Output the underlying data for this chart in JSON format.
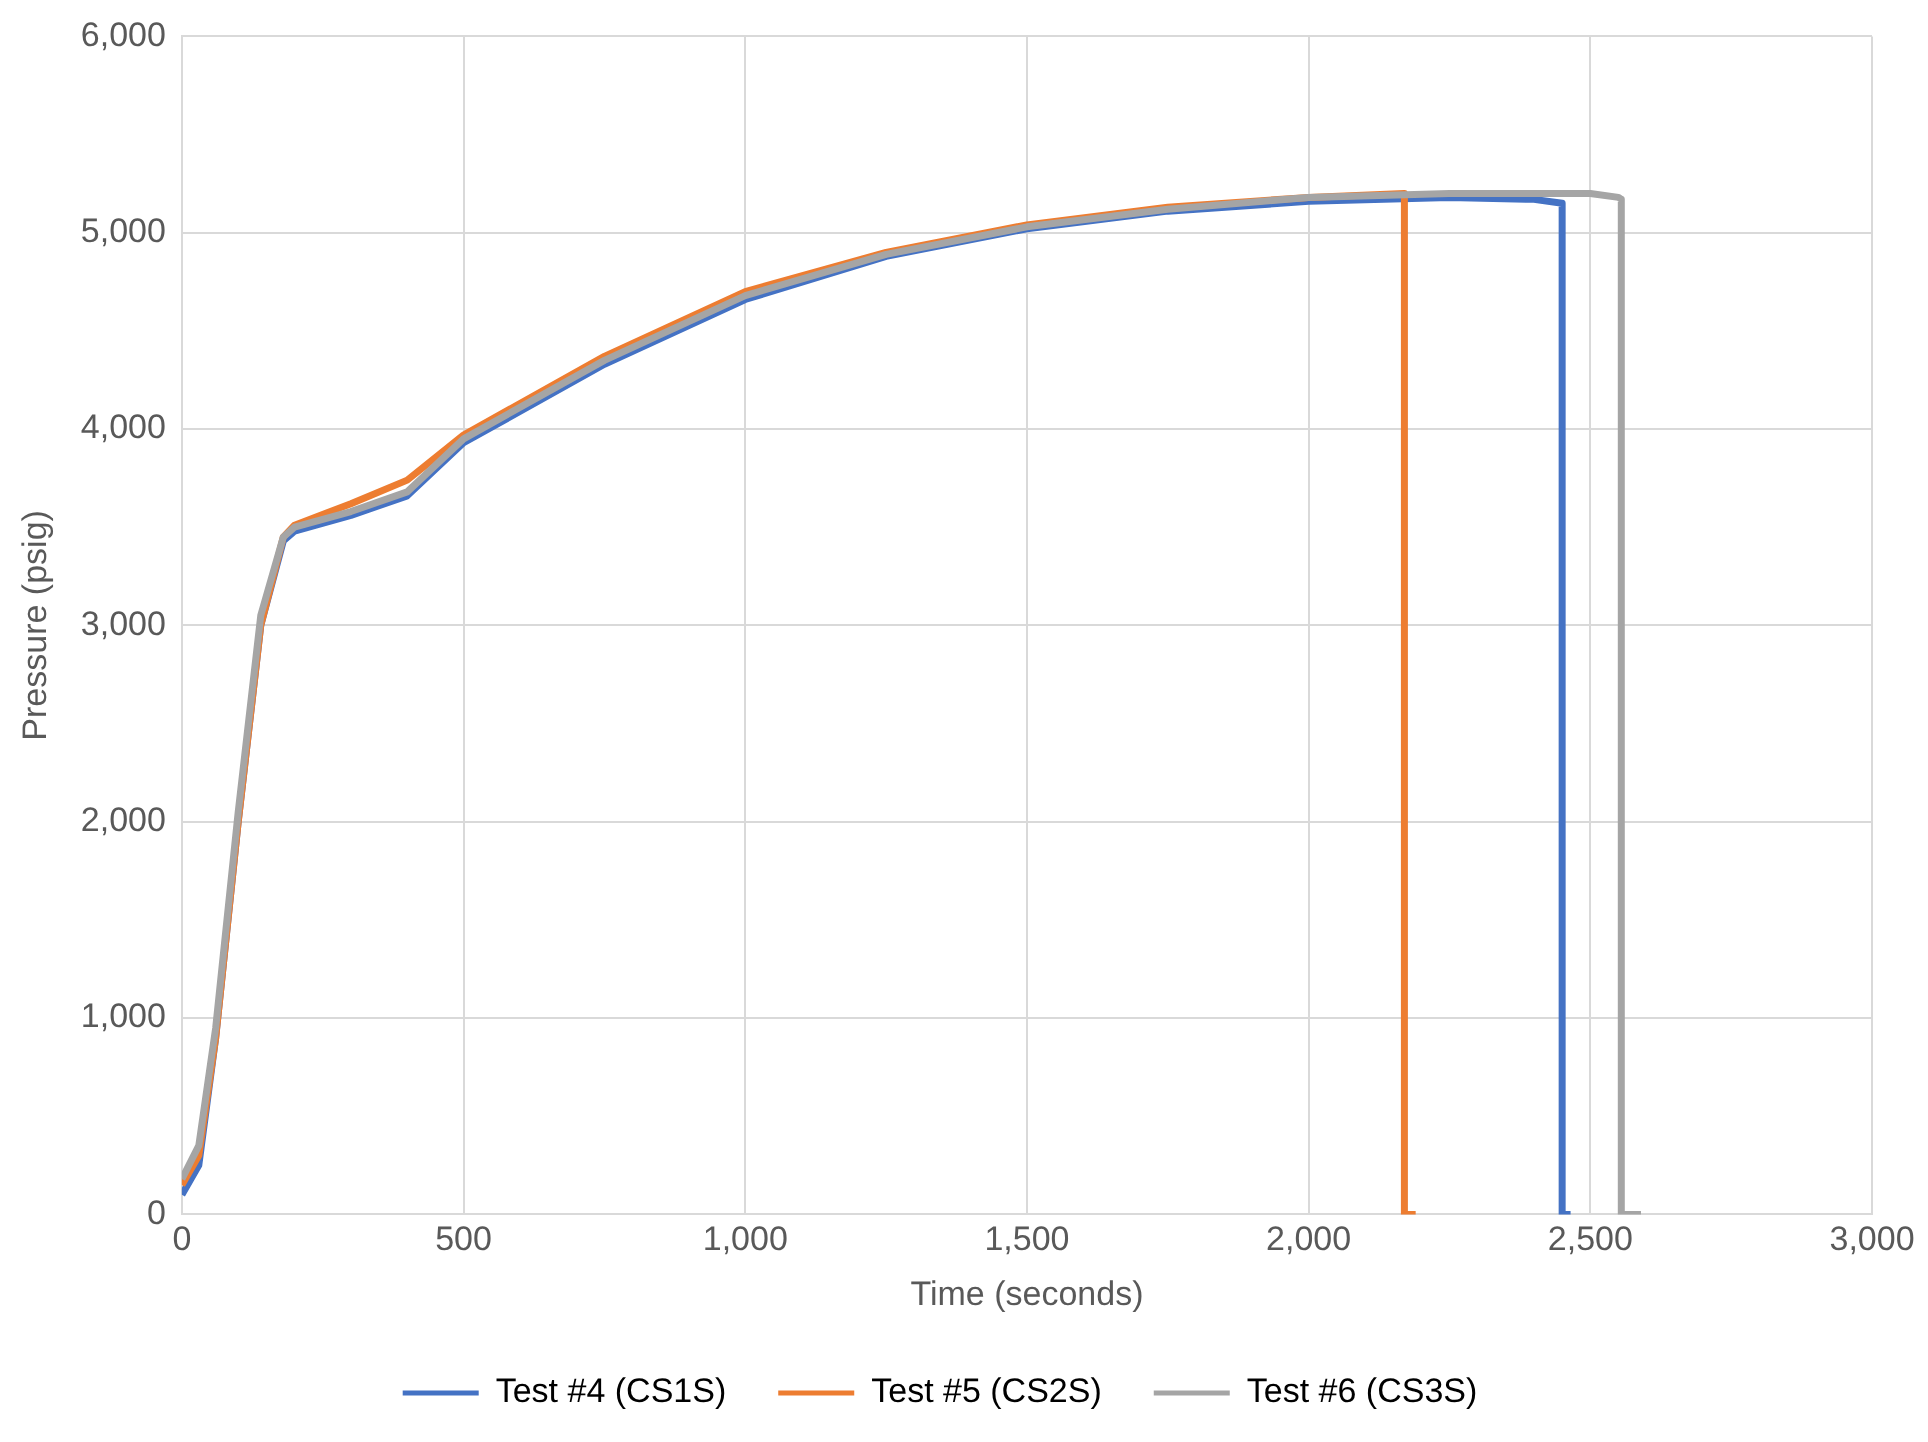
{
  "chart_data": {
    "type": "line",
    "xlabel": "Time (seconds)",
    "ylabel": "Pressure (psig)",
    "xlim": [
      0,
      3000
    ],
    "xticks": [
      {
        "value": 0,
        "label": "0"
      },
      {
        "value": 500,
        "label": "500"
      },
      {
        "value": 1000,
        "label": "1,000"
      },
      {
        "value": 1500,
        "label": "1,500"
      },
      {
        "value": 2000,
        "label": "2,000"
      },
      {
        "value": 2500,
        "label": "2,500"
      },
      {
        "value": 3000,
        "label": "3,000"
      }
    ],
    "ylim": [
      0,
      6000
    ],
    "yticks": [
      {
        "value": 0,
        "label": "0"
      },
      {
        "value": 1000,
        "label": "1,000"
      },
      {
        "value": 2000,
        "label": "2,000"
      },
      {
        "value": 3000,
        "label": "3,000"
      },
      {
        "value": 4000,
        "label": "4,000"
      },
      {
        "value": 5000,
        "label": "5,000"
      },
      {
        "value": 6000,
        "label": "6,000"
      }
    ],
    "grid": true,
    "legend": "bottom",
    "marker": "none",
    "line_style": "solid",
    "series": [
      {
        "name": "Test #4 (CS1S)",
        "color": "#4472c4",
        "x": [
          0,
          30,
          60,
          100,
          140,
          180,
          200,
          300,
          400,
          500,
          750,
          1000,
          1250,
          1500,
          1750,
          2000,
          2250,
          2400,
          2450,
          2450,
          2465
        ],
        "values": [
          100,
          250,
          900,
          2000,
          3000,
          3430,
          3480,
          3560,
          3660,
          3930,
          4330,
          4660,
          4880,
          5020,
          5110,
          5160,
          5180,
          5170,
          5150,
          0,
          0
        ]
      },
      {
        "name": "Test #5 (CS2S)",
        "color": "#ed7d31",
        "x": [
          0,
          30,
          60,
          100,
          140,
          180,
          200,
          300,
          400,
          500,
          750,
          1000,
          1250,
          1500,
          1750,
          2000,
          2170,
          2170,
          2190
        ],
        "values": [
          150,
          300,
          900,
          2000,
          3000,
          3450,
          3510,
          3620,
          3740,
          3970,
          4370,
          4700,
          4900,
          5040,
          5130,
          5180,
          5200,
          0,
          0
        ]
      },
      {
        "name": "Test #6 (CS3S)",
        "color": "#a5a5a5",
        "x": [
          0,
          30,
          60,
          100,
          140,
          180,
          200,
          300,
          400,
          500,
          750,
          1000,
          1250,
          1500,
          1750,
          2000,
          2250,
          2500,
          2550,
          2555,
          2555,
          2590
        ],
        "values": [
          180,
          350,
          950,
          2050,
          3050,
          3450,
          3500,
          3580,
          3680,
          3950,
          4350,
          4680,
          4890,
          5030,
          5120,
          5180,
          5200,
          5200,
          5180,
          5170,
          0,
          0
        ]
      }
    ]
  }
}
